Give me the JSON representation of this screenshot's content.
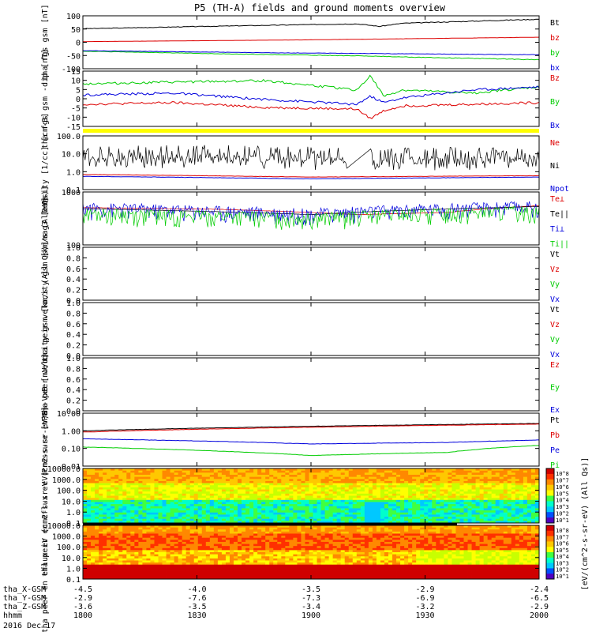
{
  "title": "P5 (TH-A) fields and ground moments overview",
  "date_label": "2016 Dec 17",
  "colorbar_label": "[eV/(cm^2-s-sr-eV) (All Qs)]",
  "colorbar_ticks": [
    "10^8",
    "10^7",
    "10^6",
    "10^5",
    "10^4",
    "10^3",
    "10^2",
    "10^1"
  ],
  "colorbar_ticks_2": [
    "10^8",
    "10^7",
    "10^6",
    "10^5",
    "10^4",
    "10^3",
    "10^2",
    "10^1"
  ],
  "x_axis": {
    "row_labels": [
      "tha_X-GSM",
      "tha_Y-GSM",
      "tha_Z-GSM",
      "hhmm"
    ],
    "columns": [
      {
        "x": "-4.5",
        "y": "-2.9",
        "z": "-3.6",
        "t": "1800"
      },
      {
        "x": "-4.0",
        "y": "-7.6",
        "z": "-3.5",
        "t": "1830"
      },
      {
        "x": "-3.5",
        "y": "-7.3",
        "z": "-3.4",
        "t": "1900"
      },
      {
        "x": "-2.9",
        "y": "-6.9",
        "z": "-3.2",
        "t": "1930"
      },
      {
        "x": "-2.4",
        "y": "-6.5",
        "z": "-2.9",
        "t": "2000"
      }
    ]
  },
  "chart_data": [
    {
      "type": "line",
      "panel": "fgs_gsm",
      "ylabel": "tha fgs gsm [nT]",
      "yticks": [
        "100",
        "50",
        "0",
        "-50",
        "-100"
      ],
      "ylim": [
        -100,
        105
      ],
      "series": [
        {
          "name": "Bt",
          "color": "#000000",
          "x": [
            0,
            0.3,
            0.6,
            0.65,
            0.7,
            1.0
          ],
          "y": [
            55,
            65,
            74,
            64,
            76,
            92
          ]
        },
        {
          "name": "bz",
          "color": "#dd0000",
          "x": [
            0,
            0.5,
            1.0
          ],
          "y": [
            5,
            12,
            22
          ]
        },
        {
          "name": "by",
          "color": "#00cc00",
          "x": [
            0,
            0.3,
            0.6,
            0.8,
            1.0
          ],
          "y": [
            -32,
            -42,
            -50,
            -58,
            -65
          ]
        },
        {
          "name": "bx",
          "color": "#0000dd",
          "x": [
            0,
            0.4,
            0.7,
            1.0
          ],
          "y": [
            -30,
            -38,
            -42,
            -46
          ]
        }
      ]
    },
    {
      "type": "line",
      "panel": "fgs_gsm_detail",
      "ylabel": "tha fgs gsm -dip [nT]",
      "yticks": [
        "15",
        "10",
        "5",
        "0",
        "-5",
        "-10",
        "-15"
      ],
      "ylim": [
        -17,
        18
      ],
      "series": [
        {
          "name": "Bz",
          "color": "#dd0000",
          "x": [
            0,
            0.2,
            0.4,
            0.6,
            0.63,
            0.66,
            0.7,
            1.0
          ],
          "y": [
            -3,
            -2,
            -5,
            -6,
            -12,
            -7,
            -4,
            -2
          ]
        },
        {
          "name": "By",
          "color": "#00cc00",
          "x": [
            0,
            0.2,
            0.4,
            0.6,
            0.63,
            0.66,
            0.7,
            0.85,
            1.0
          ],
          "y": [
            10,
            11,
            12,
            6,
            15,
            2,
            6,
            4,
            8
          ]
        },
        {
          "name": "Bx",
          "color": "#0000dd",
          "x": [
            0,
            0.2,
            0.4,
            0.6,
            0.63,
            0.66,
            0.7,
            0.85,
            1.0
          ],
          "y": [
            3,
            4,
            0,
            -3,
            2,
            -2,
            1,
            6,
            8
          ]
        }
      ]
    },
    {
      "type": "line",
      "panel": "density",
      "ylabel": "Density [1/cc] [cm-3]",
      "yscale": "log",
      "yticks": [
        "100.0",
        "10.0",
        "1.0",
        "0.1"
      ],
      "ylim": [
        0.1,
        100
      ],
      "series": [
        {
          "name": "Ne",
          "color": "#dd0000",
          "x": [
            0,
            0.5,
            1.0
          ],
          "y": [
            0.7,
            0.5,
            0.6
          ]
        },
        {
          "name": "Ni",
          "color": "#000000",
          "x": [
            0,
            0.3,
            0.6,
            1.0
          ],
          "y": [
            3,
            4,
            2.5,
            3
          ]
        },
        {
          "name": "Npot",
          "color": "#0000dd",
          "x": [
            0,
            0.5,
            1.0
          ],
          "y": [
            0.55,
            0.4,
            0.5
          ]
        }
      ]
    },
    {
      "type": "line",
      "panel": "temperature",
      "ylabel": "mag3 [eV]",
      "yscale": "log",
      "yticks": [
        "1000",
        "100"
      ],
      "ylim": [
        20,
        10000
      ],
      "series": [
        {
          "name": "Te⊥",
          "color": "#dd0000",
          "x": [
            0,
            0.3,
            0.6,
            0.8,
            1.0
          ],
          "y": [
            1600,
            1300,
            700,
            900,
            2000
          ]
        },
        {
          "name": "Te||",
          "color": "#000000",
          "x": [
            0,
            0.5,
            1.0
          ],
          "y": [
            1400,
            700,
            1800
          ]
        },
        {
          "name": "Ti⊥",
          "color": "#0000dd",
          "x": [
            0,
            0.5,
            1.0
          ],
          "y": [
            1000,
            500,
            1200
          ]
        },
        {
          "name": "Ti||",
          "color": "#00cc00",
          "x": [
            0,
            0.5,
            1.0
          ],
          "y": [
            500,
            300,
            700
          ]
        }
      ]
    },
    {
      "type": "line",
      "panel": "peir_velocity",
      "ylabel": "tha peir velocity gsm [km/s (All Qs)]",
      "yticks": [
        "1.0",
        "0.8",
        "0.6",
        "0.4",
        "0.2",
        "0.0"
      ],
      "ylim": [
        0,
        1
      ],
      "series": [
        {
          "name": "Vt",
          "color": "#000000"
        },
        {
          "name": "Vz",
          "color": "#dd0000"
        },
        {
          "name": "Vy",
          "color": "#00cc00"
        },
        {
          "name": "Vx",
          "color": "#0000dd"
        }
      ]
    },
    {
      "type": "line",
      "panel": "peer_velocity",
      "ylabel": "tha peer velocity gsm [km/s (All Qs)]",
      "yticks": [
        "1.0",
        "0.8",
        "0.6",
        "0.4",
        "0.2",
        "0.0"
      ],
      "ylim": [
        0,
        1
      ],
      "series": [
        {
          "name": "Vt",
          "color": "#000000"
        },
        {
          "name": "Vz",
          "color": "#dd0000"
        },
        {
          "name": "Vy",
          "color": "#00cc00"
        },
        {
          "name": "Vx",
          "color": "#0000dd"
        }
      ]
    },
    {
      "type": "line",
      "panel": "efield",
      "ylabel": "E=-VxB [mV/m]",
      "yticks": [
        "1.0",
        "0.8",
        "0.6",
        "0.4",
        "0.2",
        "0.0"
      ],
      "ylim": [
        0,
        1
      ],
      "series": [
        {
          "name": "Ez",
          "color": "#dd0000"
        },
        {
          "name": "Ey",
          "color": "#00cc00"
        },
        {
          "name": "Ex",
          "color": "#0000dd"
        }
      ]
    },
    {
      "type": "line",
      "panel": "pressure",
      "ylabel": "Pressure [nPa]",
      "yscale": "log",
      "yticks": [
        "10.00",
        "1.00",
        "0.10",
        "0.01"
      ],
      "ylim": [
        0.01,
        10
      ],
      "series": [
        {
          "name": "Pt",
          "color": "#000000",
          "x": [
            0,
            0.5,
            1.0
          ],
          "y": [
            1.0,
            1.8,
            2.6
          ]
        },
        {
          "name": "Pb",
          "color": "#dd0000",
          "x": [
            0,
            0.5,
            1.0
          ],
          "y": [
            0.85,
            1.6,
            2.4
          ]
        },
        {
          "name": "Pe",
          "color": "#0000dd",
          "x": [
            0,
            0.3,
            0.5,
            0.8,
            1.0
          ],
          "y": [
            0.35,
            0.25,
            0.18,
            0.22,
            0.3
          ]
        },
        {
          "name": "Pi",
          "color": "#00cc00",
          "x": [
            0,
            0.3,
            0.5,
            0.8,
            1.0
          ],
          "y": [
            0.12,
            0.07,
            0.04,
            0.06,
            0.15
          ]
        }
      ]
    },
    {
      "type": "heatmap",
      "panel": "peir_eflux",
      "ylabel": "tha peir en eflux eV (cm2-s-sr-eV)",
      "yticks": [
        "10000.0",
        "1000.0",
        "100.0",
        "10.0",
        "1.0",
        "0.1"
      ],
      "yscale": "log"
    },
    {
      "type": "heatmap",
      "panel": "peer_eflux",
      "ylabel": "tha peer en eflux eV (cm2-s-sr-eV)",
      "yticks": [
        "10000.0",
        "1000.0",
        "100.0",
        "10.0",
        "1.0",
        "0.1"
      ],
      "yscale": "log"
    }
  ]
}
